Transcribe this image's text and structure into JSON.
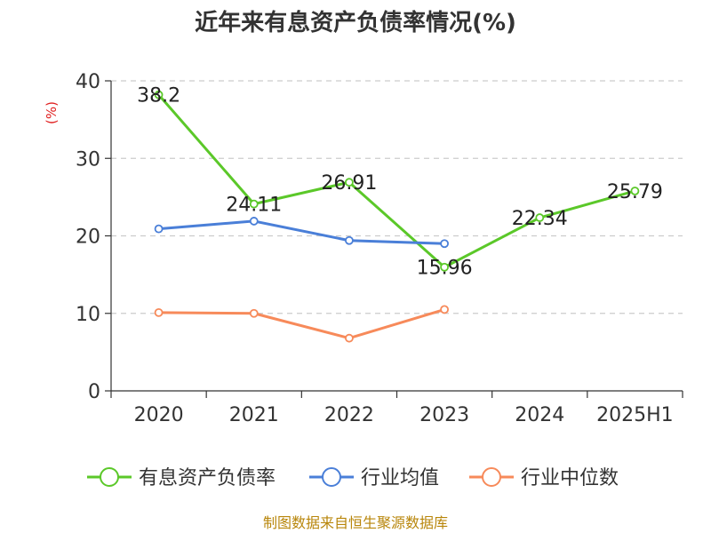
{
  "chart_data": {
    "type": "line",
    "title": "近年来有息资产负债率情况(%)",
    "ylabel": "(%)",
    "categories": [
      "2020",
      "2021",
      "2022",
      "2023",
      "2024",
      "2025H1"
    ],
    "ylim": [
      0,
      40
    ],
    "yticks": [
      0,
      10,
      20,
      30,
      40
    ],
    "grid": true,
    "legend_position": "bottom",
    "series": [
      {
        "name": "有息资产负债率",
        "color": "#5bc829",
        "values": [
          38.2,
          24.11,
          26.91,
          15.96,
          22.34,
          25.79
        ],
        "labels": [
          "38.2",
          "24.11",
          "26.91",
          "15.96",
          "22.34",
          "25.79"
        ]
      },
      {
        "name": "行业均值",
        "color": "#4a7fd8",
        "values": [
          20.9,
          21.9,
          19.4,
          19.0,
          null,
          null
        ]
      },
      {
        "name": "行业中位数",
        "color": "#f78a5a",
        "values": [
          10.1,
          10.0,
          6.8,
          10.5,
          null,
          null
        ]
      }
    ]
  },
  "source": "制图数据来自恒生聚源数据库"
}
